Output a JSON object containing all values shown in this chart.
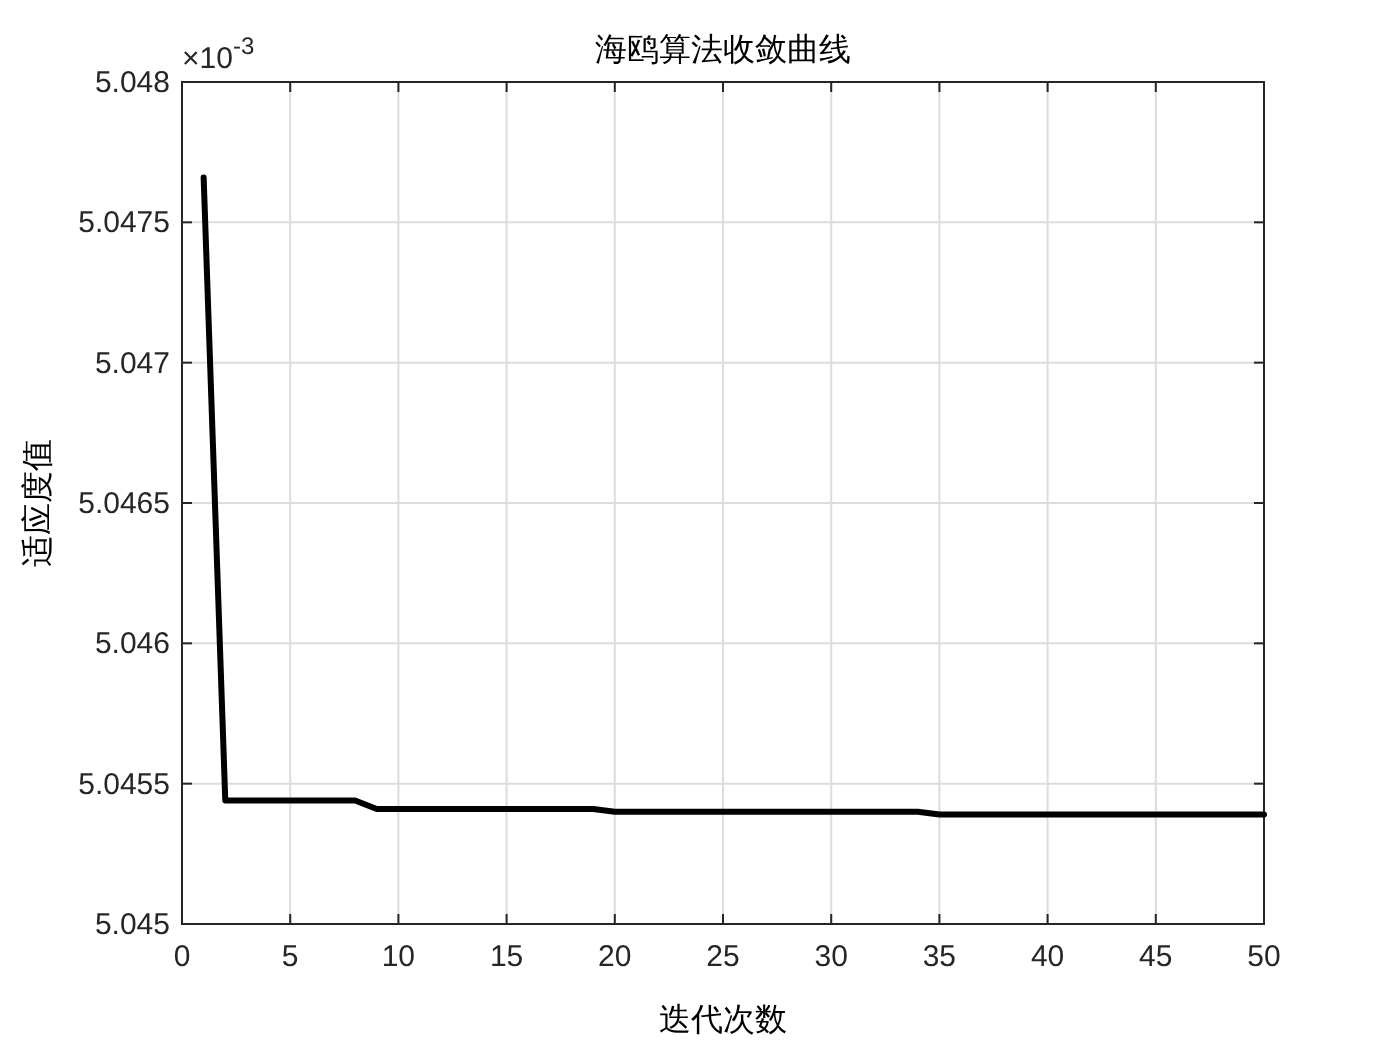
{
  "chart_data": {
    "type": "line",
    "title": "海鸥算法收敛曲线",
    "xlabel": "迭代次数",
    "ylabel": "适应度值",
    "annotations": [
      "×10$^{-3}$"
    ],
    "x": [
      1,
      2,
      3,
      4,
      5,
      6,
      7,
      8,
      9,
      10,
      11,
      12,
      13,
      14,
      15,
      16,
      17,
      18,
      19,
      20,
      21,
      22,
      23,
      24,
      25,
      26,
      27,
      28,
      29,
      30,
      31,
      32,
      33,
      34,
      35,
      36,
      37,
      38,
      39,
      40,
      41,
      42,
      43,
      44,
      45,
      46,
      47,
      48,
      49,
      50
    ],
    "series": [
      {
        "color": "#000000",
        "values": [
          5.04766,
          5.04544,
          5.04544,
          5.04544,
          5.04544,
          5.04544,
          5.04544,
          5.04544,
          5.04541,
          5.04541,
          5.04541,
          5.04541,
          5.04541,
          5.04541,
          5.04541,
          5.04541,
          5.04541,
          5.04541,
          5.04541,
          5.0454,
          5.0454,
          5.0454,
          5.0454,
          5.0454,
          5.0454,
          5.0454,
          5.0454,
          5.0454,
          5.0454,
          5.0454,
          5.0454,
          5.0454,
          5.0454,
          5.0454,
          5.04539,
          5.04539,
          5.04539,
          5.04539,
          5.04539,
          5.04539,
          5.04539,
          5.04539,
          5.04539,
          5.04539,
          5.04539,
          5.04539,
          5.04539,
          5.04539,
          5.04539,
          5.04539
        ]
      }
    ],
    "xlim": [
      0,
      50
    ],
    "ylim": [
      5.045,
      5.048
    ],
    "xticks": [
      0,
      5,
      10,
      15,
      20,
      25,
      30,
      35,
      40,
      45,
      50
    ],
    "yticks": [
      5.045,
      5.0455,
      5.046,
      5.0465,
      5.047,
      5.0475,
      5.048
    ],
    "grid": true,
    "marker": "none",
    "line_style": "solid"
  }
}
